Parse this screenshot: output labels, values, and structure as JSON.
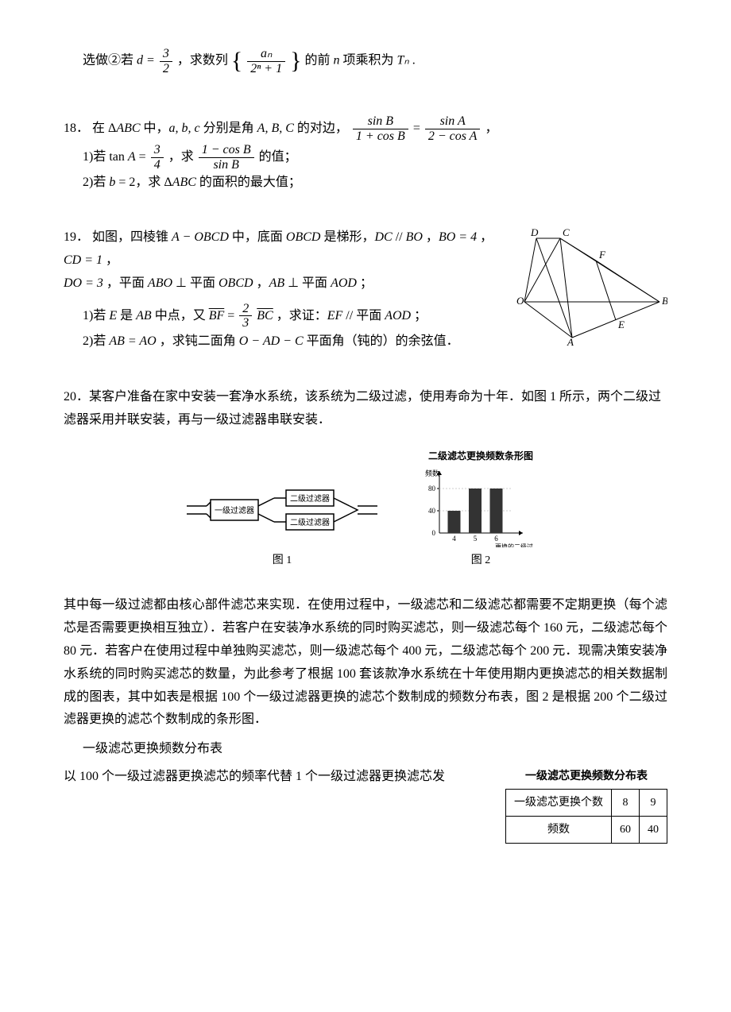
{
  "q17b": {
    "pre": "选做②若 ",
    "d_eq": "d =",
    "d_num": "3",
    "d_den": "2",
    "mid1": "，求数列",
    "seq_num": "aₙ",
    "seq_den": "2ⁿ + 1",
    "mid2": " 的前 ",
    "n": "n",
    "mid3": " 项乘积为 ",
    "T": "Tₙ",
    "end": "."
  },
  "q18": {
    "num": "18．",
    "pre": "在 Δ",
    "ABC": "ABC",
    "t1": " 中，",
    "abc": "a, b, c",
    "t2": " 分别是角 ",
    "ABC2": "A, B, C",
    "t3": " 的对边，",
    "f1_num": "sin B",
    "f1_den": "1 + cos B",
    "eq": " = ",
    "f2_num": "sin A",
    "f2_den": "2 − cos A",
    "t4": "，",
    "s1_pre": "1)若 tan ",
    "A": "A",
    "s1_eq": " = ",
    "s1_num": "3",
    "s1_den": "4",
    "s1_mid": "，求 ",
    "s1_f_num": "1 − cos B",
    "s1_f_den": "sin B",
    "s1_end": " 的值；",
    "s2_pre": "2)若 ",
    "b": "b",
    "s2_eq": " = 2，求 Δ",
    "s2_ABC": "ABC",
    "s2_end": " 的面积的最大值；"
  },
  "q19": {
    "num": "19．",
    "l1a": "如图，四棱锥 ",
    "AOBCD": "A − OBCD",
    "l1b": " 中，底面 ",
    "OBCD": "OBCD",
    "l1c": " 是梯形，",
    "DC": "DC",
    "par": " // ",
    "BO": "BO",
    "l1d": "，",
    "BOeq": "BO = 4",
    "l1e": "，",
    "CDeq": "CD = 1",
    "l1f": "，",
    "l2a": "DO = 3",
    "l2b": "，平面 ",
    "ABO": "ABO",
    "perp": " ⊥ ",
    "l2c": "平面 ",
    "OBCD2": "OBCD",
    "l2d": "，",
    "AB": "AB",
    "l2e": "平面 ",
    "AOD": "AOD",
    "l2f": "；",
    "s1a": "1)若 ",
    "E": "E",
    "s1b": " 是 ",
    "AB2": "AB",
    "s1c": " 中点，又 ",
    "BF": "BF",
    "s1eq": " = ",
    "s1num": "2",
    "s1den": "3",
    "BC": "BC",
    "s1d": "，求证：",
    "EF": "EF",
    "s1e": " // 平面 ",
    "AOD2": "AOD",
    "s1f": "；",
    "s2a": "2)若 ",
    "ABeq": "AB = AO",
    "s2b": "，求钝二面角 ",
    "OADC": "O − AD − C",
    "s2c": " 平面角（钝的）的余弦值．",
    "fig_labels": {
      "D": "D",
      "C": "C",
      "F": "F",
      "O": "O",
      "B": "B",
      "A": "A",
      "E": "E"
    }
  },
  "q20": {
    "num": "20．",
    "p1": "某客户准备在家中安装一套净水系统，该系统为二级过滤，使用寿命为十年．如图 1 所示，两个二级过滤器采用并联安装，再与一级过滤器串联安装．",
    "fig1": {
      "l1": "一级过滤器",
      "l2a": "二级过滤器",
      "l2b": "二级过滤器",
      "caption": "图 1"
    },
    "fig2": {
      "title": "二级滤芯更换频数条形图",
      "ylabel": "频数",
      "xlabel": "更换的二级过滤器滤芯个数",
      "caption": "图 2",
      "ymax": 100,
      "yticks": [
        40,
        80
      ],
      "xticks": [
        "4",
        "5",
        "6"
      ],
      "values": [
        40,
        80,
        80
      ],
      "bar_color": "#333333",
      "axis_color": "#000000",
      "bg": "#ffffff"
    },
    "p2": "其中每一级过滤都由核心部件滤芯来实现．在使用过程中，一级滤芯和二级滤芯都需要不定期更换（每个滤芯是否需要更换相互独立）．若客户在安装净水系统的同时购买滤芯，则一级滤芯每个 160 元，二级滤芯每个 80 元．若客户在使用过程中单独购买滤芯，则一级滤芯每个 400 元，二级滤芯每个 200 元．现需决策安装净水系统的同时购买滤芯的数量，为此参考了根据 100 套该款净水系统在十年使用期内更换滤芯的相关数据制成的图表，其中如表是根据 100 个一级过滤器更换的滤芯个数制成的频数分布表，图 2 是根据 200 个二级过滤器更换的滤芯个数制成的条形图．",
    "tcap": "一级滤芯更换频数分布表",
    "p3": "以 100 个一级过滤器更换滤芯的频率代替 1 个一级过滤器更换滤芯发",
    "table": {
      "title": "一级滤芯更换频数分布表",
      "header": [
        "一级滤芯更换个数",
        "8",
        "9"
      ],
      "row": [
        "频数",
        "60",
        "40"
      ]
    }
  }
}
